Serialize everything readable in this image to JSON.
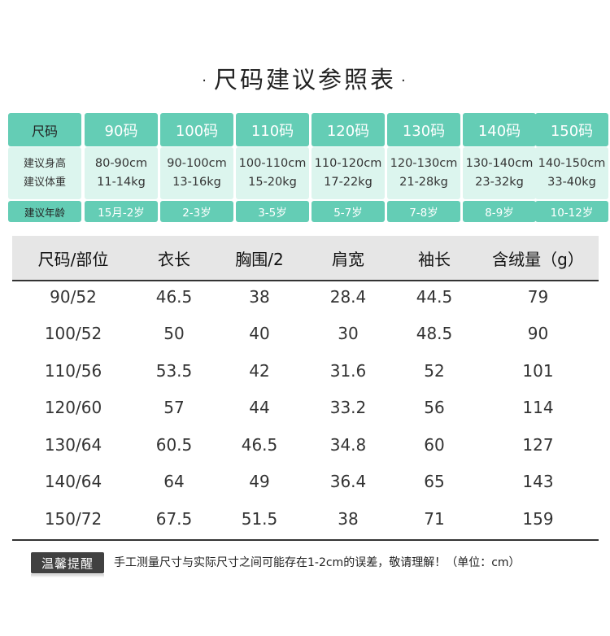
{
  "title": "尺码建议参照表",
  "title_dot": "·",
  "guide": {
    "header_label": "尺码",
    "sizes": [
      "90码",
      "100码",
      "110码",
      "120码",
      "130码",
      "140码",
      "150码"
    ],
    "height_label": "建议身高",
    "weight_label": "建议体重",
    "heights": [
      "80-90cm",
      "90-100cm",
      "100-110cm",
      "110-120cm",
      "120-130cm",
      "130-140cm",
      "140-150cm"
    ],
    "weights": [
      "11-14kg",
      "13-16kg",
      "15-20kg",
      "17-22kg",
      "21-28kg",
      "23-32kg",
      "33-40kg"
    ],
    "age_label": "建议年龄",
    "ages": [
      "15月-2岁",
      "2-3岁",
      "3-5岁",
      "5-7岁",
      "7-8岁",
      "8-9岁",
      "10-12岁"
    ]
  },
  "measure": {
    "headers": [
      "尺码/部位",
      "衣长",
      "胸围/2",
      "肩宽",
      "袖长",
      "含绒量（g）"
    ],
    "rows": [
      [
        "90/52",
        "46.5",
        "38",
        "28.4",
        "44.5",
        "79"
      ],
      [
        "100/52",
        "50",
        "40",
        "30",
        "48.5",
        "90"
      ],
      [
        "110/56",
        "53.5",
        "42",
        "31.6",
        "52",
        "101"
      ],
      [
        "120/60",
        "57",
        "44",
        "33.2",
        "56",
        "114"
      ],
      [
        "130/64",
        "60.5",
        "46.5",
        "34.8",
        "60",
        "127"
      ],
      [
        "140/64",
        "64",
        "49",
        "36.4",
        "65",
        "143"
      ],
      [
        "150/72",
        "67.5",
        "51.5",
        "38",
        "71",
        "159"
      ]
    ]
  },
  "note": {
    "badge": "温馨提醒",
    "text": "手工测量尺寸与实际尺寸之间可能存在1-2cm的误差，敬请理解！（单位：cm）"
  },
  "colors": {
    "accent": "#64cdb5",
    "accent_light": "#dcf5ee",
    "header_gray": "#e6e6e6",
    "badge": "#414141"
  }
}
